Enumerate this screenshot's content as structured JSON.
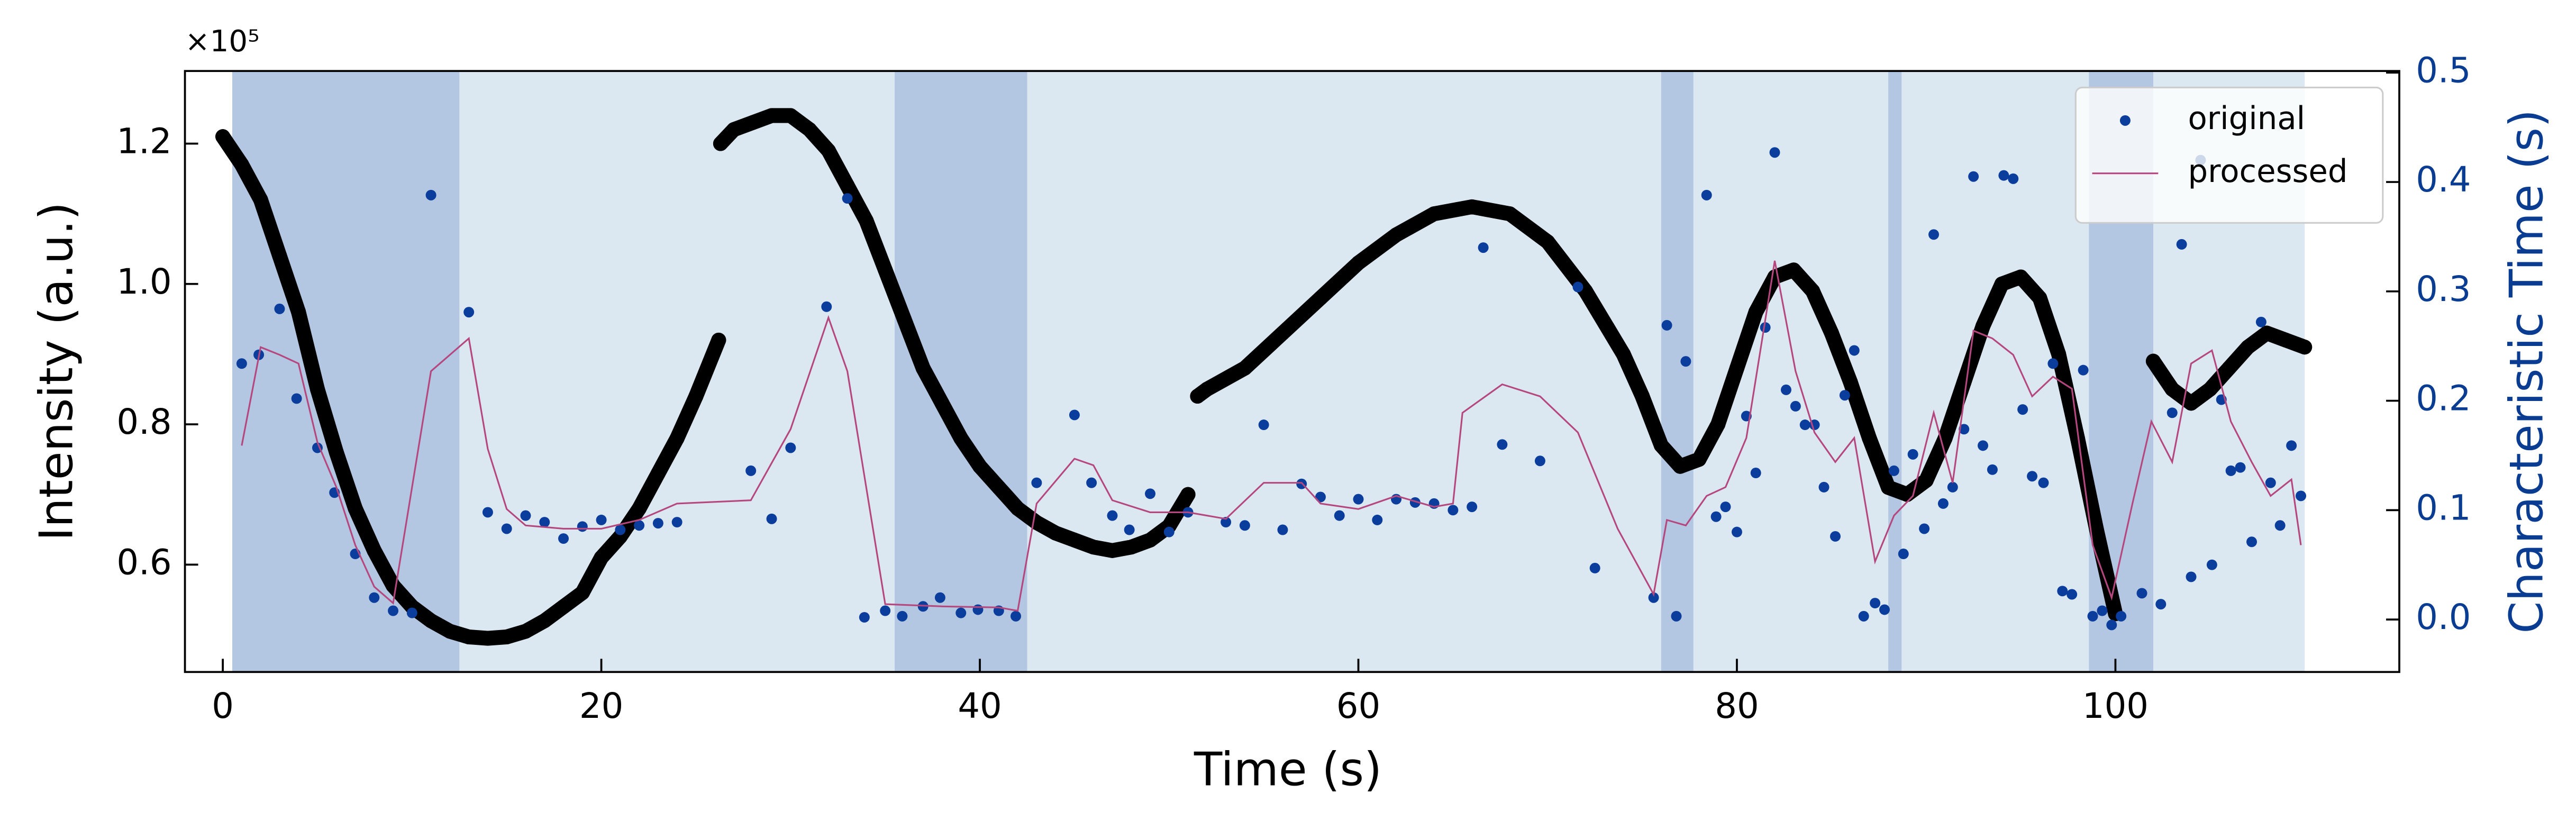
{
  "chart_data": {
    "type": "scatter",
    "xlabel": "Time (s)",
    "ylabel": "Intensity (a.u.)",
    "y2label": "Characteristic Time (s)",
    "y_offset_label": "×10⁵",
    "xlim": [
      -2,
      115
    ],
    "xticks": [
      0,
      20,
      40,
      60,
      80,
      100
    ],
    "ylim": [
      0.447,
      1.3035
    ],
    "yticks": [
      0.6,
      0.8,
      {
        "value": 1,
        "label": "1.0"
      },
      1.2
    ],
    "y2lim": [
      -0.048,
      0.5015
    ],
    "y2ticks": [
      {
        "value": 0,
        "label": "0.0"
      },
      0.1,
      0.2,
      0.3,
      0.4,
      0.5
    ],
    "y2color": "#0a3d91",
    "legend": "upper right",
    "spans": [
      {
        "start": 0.5,
        "end": 110,
        "color": "#dbe8f1"
      },
      {
        "start": 0.5,
        "end": 12.5,
        "color": "#b3c6e2"
      },
      {
        "start": 35.5,
        "end": 42.5,
        "color": "#b3c6e2"
      },
      {
        "start": 76,
        "end": 77.7,
        "color": "#b3c6e2"
      },
      {
        "start": 88,
        "end": 88.7,
        "color": "#b3c6e2"
      },
      {
        "start": 98.6,
        "end": 102,
        "color": "#b3c6e2"
      }
    ],
    "series": [
      {
        "type": "scatter",
        "color": "#000000",
        "axis": "y",
        "x": [
          0,
          1,
          2,
          3,
          4,
          5,
          6,
          7,
          8,
          9,
          10,
          11,
          12,
          13,
          14,
          15,
          16,
          17,
          18,
          19,
          20,
          21,
          22,
          23,
          24,
          25,
          26.2,
          26.25,
          26.3,
          27,
          28,
          29,
          30,
          31,
          32,
          33,
          34,
          35,
          36,
          37,
          38,
          39,
          40,
          41,
          42,
          43,
          44,
          45,
          46,
          47,
          48,
          49,
          50,
          51,
          51.3,
          51.5,
          52,
          54,
          56,
          58,
          60,
          62,
          64,
          66,
          68,
          70,
          72,
          74,
          75,
          76,
          77,
          78,
          79,
          80,
          81,
          82,
          83,
          84,
          85,
          86,
          87,
          88,
          89,
          90,
          91,
          92,
          93,
          94,
          95,
          96,
          97,
          98,
          99,
          100,
          101,
          102,
          103,
          104,
          105,
          106,
          107,
          108,
          109,
          110
        ],
        "values": [
          1.21,
          1.17,
          1.12,
          1.04,
          0.96,
          0.85,
          0.76,
          0.68,
          0.62,
          0.57,
          0.54,
          0.52,
          0.505,
          0.497,
          0.495,
          0.497,
          0.505,
          0.52,
          0.54,
          0.56,
          0.61,
          0.64,
          0.68,
          0.73,
          0.78,
          0.84,
          0.92,
          null,
          1.2,
          1.22,
          1.23,
          1.24,
          1.24,
          1.22,
          1.19,
          1.14,
          1.09,
          1.02,
          0.95,
          0.88,
          0.83,
          0.78,
          0.74,
          0.71,
          0.68,
          0.66,
          0.645,
          0.635,
          0.625,
          0.62,
          0.625,
          0.635,
          0.655,
          0.7,
          null,
          0.84,
          0.85,
          0.88,
          0.93,
          0.98,
          1.03,
          1.07,
          1.1,
          1.11,
          1.1,
          1.06,
          0.99,
          0.9,
          0.84,
          0.77,
          0.74,
          0.75,
          0.8,
          0.88,
          0.96,
          1.01,
          1.02,
          0.99,
          0.93,
          0.86,
          0.78,
          0.71,
          0.7,
          0.72,
          0.78,
          0.86,
          0.94,
          1,
          1.01,
          0.98,
          0.9,
          0.78,
          0.65,
          0.53,
          null,
          0.89,
          0.85,
          0.83,
          0.85,
          0.88,
          0.91,
          0.93,
          0.92,
          0.91
        ]
      },
      {
        "type": "scatter",
        "name": "original",
        "color": "#0a3d9c",
        "axis": "y2",
        "x": [
          1,
          1.9,
          3,
          3.9,
          5,
          5.9,
          7,
          8,
          9,
          10,
          11,
          13,
          14,
          15,
          16,
          17,
          18,
          19,
          20,
          21,
          22,
          23,
          24,
          27.9,
          29,
          30,
          31.9,
          33,
          33.9,
          35,
          35.9,
          37,
          37.9,
          39,
          39.9,
          41,
          41.9,
          43,
          45,
          45.9,
          47,
          47.9,
          49,
          50,
          51,
          53,
          54,
          55,
          56,
          57,
          58,
          59,
          60,
          61,
          62,
          63,
          64,
          65,
          66,
          66.6,
          67.6,
          69.6,
          71.6,
          72.5,
          75.6,
          76.3,
          76.8,
          77.3,
          78.4,
          78.9,
          79.4,
          80,
          80.5,
          81,
          81.5,
          82,
          82.6,
          83.1,
          83.6,
          84.1,
          84.6,
          85.2,
          85.7,
          86.2,
          86.7,
          87.3,
          87.8,
          88.3,
          88.8,
          89.3,
          89.9,
          90.4,
          90.9,
          91.4,
          92,
          92.5,
          93,
          93.5,
          94.1,
          94.6,
          95.1,
          95.6,
          96.2,
          96.7,
          97.2,
          97.7,
          98.3,
          98.8,
          99.3,
          99.8,
          100.3,
          101.4,
          102.4,
          103,
          103.5,
          104,
          104.5,
          105.1,
          105.6,
          106.1,
          106.6,
          107.2,
          107.7,
          108.2,
          108.7,
          109.3,
          109.8
        ],
        "values": [
          0.234,
          0.242,
          0.284,
          0.202,
          0.157,
          0.116,
          0.06,
          0.02,
          0.008,
          0.006,
          0.388,
          0.281,
          0.098,
          0.083,
          0.095,
          0.089,
          0.074,
          0.085,
          0.091,
          0.082,
          0.086,
          0.088,
          0.089,
          0.136,
          0.092,
          0.157,
          0.286,
          0.385,
          0.002,
          0.008,
          0.003,
          0.012,
          0.02,
          0.006,
          0.009,
          0.008,
          0.003,
          0.125,
          0.187,
          0.125,
          0.095,
          0.082,
          0.115,
          0.08,
          0.098,
          0.089,
          0.086,
          0.178,
          0.082,
          0.124,
          0.112,
          0.095,
          0.11,
          0.091,
          0.11,
          0.107,
          0.106,
          0.1,
          0.103,
          0.34,
          0.16,
          0.145,
          0.304,
          0.047,
          0.02,
          0.269,
          0.003,
          0.236,
          0.388,
          0.094,
          0.103,
          0.08,
          0.186,
          0.134,
          0.267,
          0.427,
          0.21,
          0.195,
          0.178,
          0.178,
          0.121,
          0.076,
          0.205,
          0.246,
          0.003,
          0.015,
          0.009,
          0.136,
          0.06,
          0.151,
          0.083,
          0.352,
          0.106,
          0.121,
          0.174,
          0.405,
          0.159,
          0.137,
          0.406,
          0.403,
          0.192,
          0.131,
          0.125,
          0.234,
          0.026,
          0.023,
          0.228,
          0.003,
          0.008,
          -0.005,
          0.003,
          0.024,
          0.014,
          0.189,
          0.343,
          0.039,
          0.42,
          0.05,
          0.201,
          0.136,
          0.139,
          0.071,
          0.272,
          0.125,
          0.086,
          0.159,
          0.113
        ]
      },
      {
        "type": "line",
        "name": "processed",
        "color": "#b5477f",
        "axis": "y2",
        "x": [
          1,
          2,
          3,
          4,
          5,
          6,
          7,
          8,
          9,
          10,
          11,
          13,
          14,
          15,
          16,
          18,
          20,
          22,
          24,
          27.9,
          30,
          32,
          33,
          35,
          38,
          41,
          42,
          43,
          45,
          46,
          47,
          49,
          51,
          53,
          55,
          57,
          58,
          60,
          62,
          64,
          65,
          65.5,
          67.6,
          69.6,
          71.6,
          73.7,
          75.6,
          76.3,
          77.3,
          78.4,
          79.4,
          80.5,
          82,
          83.1,
          84.1,
          85.2,
          86.2,
          87.3,
          88.3,
          89.3,
          90.4,
          91.4,
          92.5,
          93.5,
          94.6,
          95.6,
          96.7,
          97.7,
          98.8,
          99.8,
          100.9,
          101.9,
          103,
          104,
          105.1,
          106.1,
          107.2,
          108.2,
          109.3,
          109.8
        ],
        "values": [
          0.159,
          0.249,
          0.242,
          0.234,
          0.162,
          0.121,
          0.068,
          0.03,
          0.015,
          0.121,
          0.227,
          0.257,
          0.156,
          0.101,
          0.086,
          0.083,
          0.083,
          0.091,
          0.106,
          0.109,
          0.174,
          0.276,
          0.227,
          0.014,
          0.012,
          0.011,
          0.008,
          0.106,
          0.147,
          0.141,
          0.109,
          0.098,
          0.098,
          0.092,
          0.125,
          0.125,
          0.106,
          0.101,
          0.113,
          0.103,
          0.106,
          0.189,
          0.215,
          0.204,
          0.171,
          0.083,
          0.023,
          0.091,
          0.086,
          0.113,
          0.121,
          0.166,
          0.328,
          0.227,
          0.171,
          0.144,
          0.166,
          0.053,
          0.095,
          0.113,
          0.189,
          0.125,
          0.264,
          0.257,
          0.242,
          0.204,
          0.222,
          0.211,
          0.068,
          0.02,
          0.106,
          0.181,
          0.144,
          0.234,
          0.246,
          0.181,
          0.144,
          0.113,
          0.128,
          0.068
        ]
      }
    ]
  }
}
